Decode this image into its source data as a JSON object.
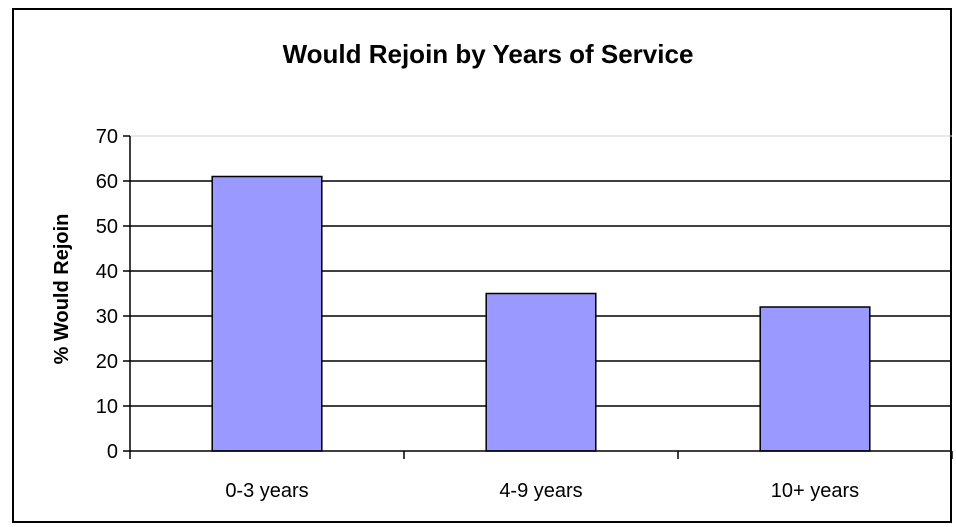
{
  "chart_data": {
    "type": "bar",
    "title": "Would Rejoin by Years of Service",
    "xlabel": "",
    "ylabel": "% Would Rejoin",
    "categories": [
      "0-3 years",
      "4-9 years",
      "10+ years"
    ],
    "values": [
      61,
      35,
      32
    ],
    "ylim": [
      0,
      70
    ],
    "yticks": [
      0,
      10,
      20,
      30,
      40,
      50,
      60,
      70
    ],
    "grid": true,
    "legend": "none",
    "bar_color": "#9999ff",
    "bar_border_color": "#000000"
  }
}
